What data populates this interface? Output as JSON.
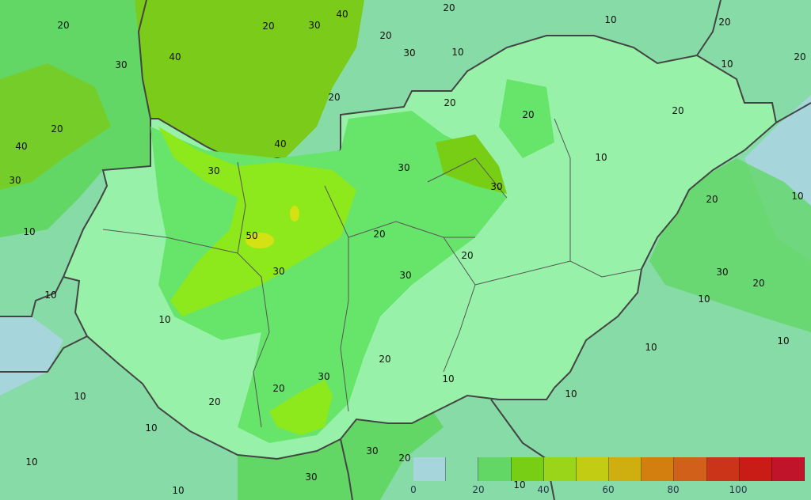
{
  "map": {
    "colors": {
      "background": "#a6d5dc",
      "outer_green": "#86dba6",
      "hungary_low": "#98f1a8",
      "level_30": "#67e46a",
      "level_40": "#8de81c",
      "level_50": "#d4e214",
      "north_highland": "#7acb1a",
      "border": "#444444"
    },
    "contour_labels": [
      "20",
      "30",
      "40",
      "20",
      "40",
      "30",
      "10",
      "10",
      "10",
      "30",
      "50",
      "30",
      "40",
      "20",
      "40",
      "30",
      "20",
      "20",
      "30",
      "10",
      "20",
      "10",
      "20",
      "10",
      "20",
      "20",
      "20",
      "20",
      "10",
      "30",
      "30",
      "20",
      "10",
      "20",
      "20",
      "30",
      "30",
      "20",
      "10",
      "10",
      "10",
      "20",
      "30",
      "10",
      "20",
      "20",
      "10",
      "10",
      "10",
      "10",
      "10",
      "30",
      "20",
      "30",
      "10"
    ]
  },
  "legend": {
    "colors": [
      "#a6d5dc",
      "#86dba6",
      "#62d765",
      "#78cd15",
      "#9bd51a",
      "#c1cc12",
      "#cfae10",
      "#d27f10",
      "#d0601a",
      "#cb3418",
      "#c91c16",
      "#c0142a"
    ],
    "ticks": [
      "0",
      "20",
      "40",
      "60",
      "80",
      "100"
    ]
  }
}
